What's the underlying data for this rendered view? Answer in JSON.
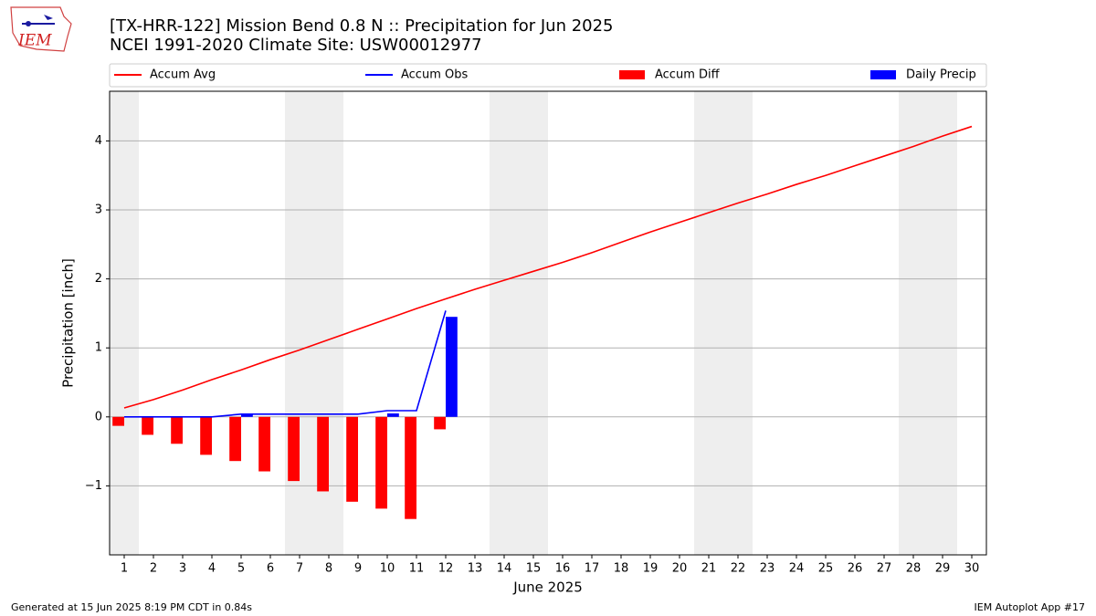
{
  "chart_data": {
    "type": "line",
    "title": "[TX-HRR-122] Mission Bend 0.8 N :: Precipitation for Jun 2025",
    "subtitle": "NCEI 1991-2020 Climate Site: USW00012977",
    "x_label": "June 2025",
    "y_label": "Precipitation [inch]",
    "logo_text": "IEM",
    "footer_left": "Generated at 15 Jun 2025 8:19 PM CDT in 0.84s",
    "footer_right": "IEM Autoplot App #17",
    "x": [
      1,
      2,
      3,
      4,
      5,
      6,
      7,
      8,
      9,
      10,
      11,
      12,
      13,
      14,
      15,
      16,
      17,
      18,
      19,
      20,
      21,
      22,
      23,
      24,
      25,
      26,
      27,
      28,
      29,
      30
    ],
    "xlim": [
      0.5,
      30.5
    ],
    "xticks": [
      1,
      2,
      3,
      4,
      5,
      6,
      7,
      8,
      9,
      10,
      11,
      12,
      13,
      14,
      15,
      16,
      17,
      18,
      19,
      20,
      21,
      22,
      23,
      24,
      25,
      26,
      27,
      28,
      29,
      30
    ],
    "ylim": [
      -2.0,
      4.72
    ],
    "yticks": [
      {
        "value": -1,
        "label": "−1"
      },
      0,
      1,
      2,
      3,
      4
    ],
    "grid": true,
    "shaded_ranges": [
      [
        0.5,
        1.5
      ],
      [
        6.5,
        8.5
      ],
      [
        13.5,
        15.5
      ],
      [
        20.5,
        22.5
      ],
      [
        27.5,
        29.5
      ]
    ],
    "series": [
      {
        "name": "Accum Avg",
        "kind": "line",
        "color": "#ff0000",
        "values": [
          0.13,
          0.25,
          0.39,
          0.54,
          0.68,
          0.83,
          0.97,
          1.12,
          1.27,
          1.42,
          1.57,
          1.71,
          1.85,
          1.98,
          2.11,
          2.24,
          2.38,
          2.53,
          2.68,
          2.82,
          2.96,
          3.1,
          3.23,
          3.37,
          3.5,
          3.64,
          3.78,
          3.92,
          4.07,
          4.21
        ]
      },
      {
        "name": "Accum Obs",
        "kind": "line",
        "color": "#0000ff",
        "values": [
          0,
          0,
          0,
          0,
          0.04,
          0.04,
          0.04,
          0.04,
          0.04,
          0.09,
          0.09,
          1.54,
          null,
          null,
          null,
          null,
          null,
          null,
          null,
          null,
          null,
          null,
          null,
          null,
          null,
          null,
          null,
          null,
          null,
          null
        ]
      },
      {
        "name": "Accum Diff",
        "kind": "bar",
        "color": "#ff0000",
        "values": [
          -0.13,
          -0.26,
          -0.39,
          -0.55,
          -0.64,
          -0.79,
          -0.93,
          -1.08,
          -1.23,
          -1.33,
          -1.48,
          -0.18,
          null,
          null,
          null,
          null,
          null,
          null,
          null,
          null,
          null,
          null,
          null,
          null,
          null,
          null,
          null,
          null,
          null,
          null
        ]
      },
      {
        "name": "Daily Precip",
        "kind": "bar",
        "color": "#0000ff",
        "values": [
          0,
          0,
          0,
          0,
          0.04,
          0,
          0,
          0,
          0,
          0.05,
          0,
          1.45,
          null,
          null,
          null,
          null,
          null,
          null,
          null,
          null,
          null,
          null,
          null,
          null,
          null,
          null,
          null,
          null,
          null,
          null
        ]
      }
    ]
  }
}
